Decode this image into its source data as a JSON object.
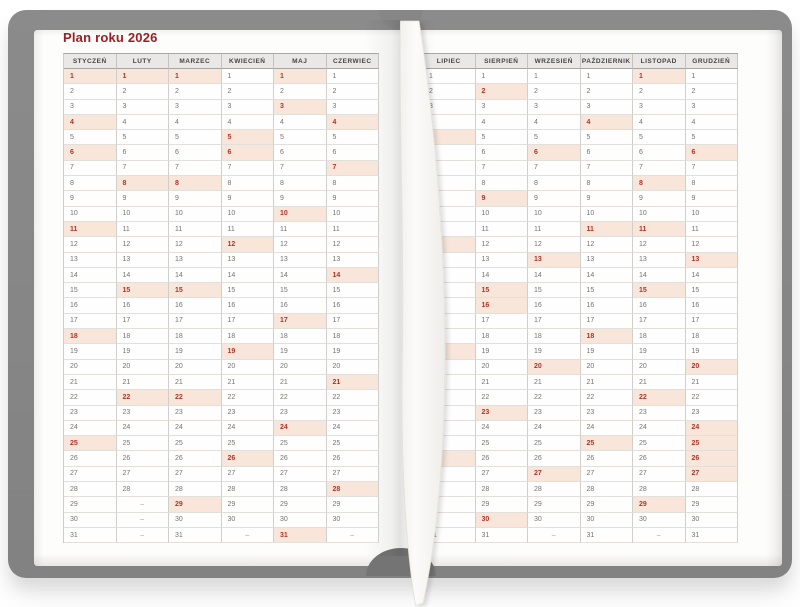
{
  "title": "Plan roku 2026",
  "no_day_symbol": "–",
  "days_per_column": 31,
  "colors": {
    "title_red": "#9e1d22",
    "highlight_bg": "#f8e6da",
    "highlight_text": "#af342a",
    "header_bg": "#e9e8e6",
    "header_text": "#454545",
    "day_text": "#767472",
    "cover_gray": "#8b8b8b",
    "ribbon_white": "#fbfaf7"
  },
  "left_page": {
    "months": [
      {
        "label": "STYCZEŃ",
        "days": 31,
        "highlighted": [
          1,
          4,
          6,
          11,
          18,
          25
        ]
      },
      {
        "label": "LUTY",
        "days": 28,
        "highlighted": [
          1,
          8,
          15,
          22
        ]
      },
      {
        "label": "MARZEC",
        "days": 31,
        "highlighted": [
          1,
          8,
          15,
          22,
          29
        ]
      },
      {
        "label": "KWIECIEŃ",
        "days": 30,
        "highlighted": [
          5,
          6,
          12,
          19,
          26
        ]
      },
      {
        "label": "MAJ",
        "days": 31,
        "highlighted": [
          1,
          3,
          10,
          17,
          24,
          31
        ]
      },
      {
        "label": "CZERWIEC",
        "days": 30,
        "highlighted": [
          4,
          7,
          14,
          21,
          28
        ]
      }
    ]
  },
  "right_page": {
    "months": [
      {
        "label": "LIPIEC",
        "days": 31,
        "highlighted": [
          5,
          12,
          19,
          26
        ]
      },
      {
        "label": "SIERPIEŃ",
        "days": 31,
        "highlighted": [
          2,
          9,
          15,
          16,
          23,
          30
        ]
      },
      {
        "label": "WRZESIEŃ",
        "days": 30,
        "highlighted": [
          6,
          13,
          20,
          27
        ]
      },
      {
        "label": "PAŹDZIERNIK",
        "days": 31,
        "highlighted": [
          4,
          11,
          18,
          25
        ]
      },
      {
        "label": "LISTOPAD",
        "days": 30,
        "highlighted": [
          1,
          8,
          11,
          15,
          22,
          29
        ]
      },
      {
        "label": "GRUDZIEŃ",
        "days": 31,
        "highlighted": [
          6,
          13,
          20,
          24,
          25,
          26,
          27
        ]
      }
    ]
  }
}
